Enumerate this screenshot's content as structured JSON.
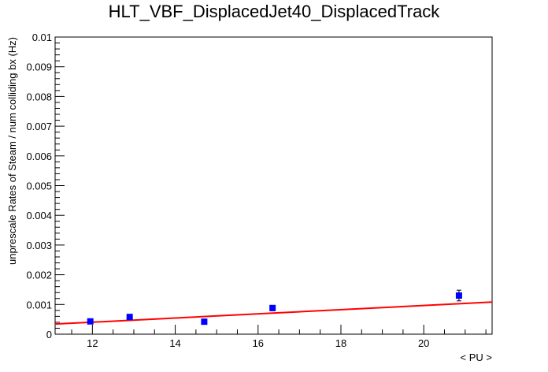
{
  "chart_data": {
    "type": "scatter",
    "title": "HLT_VBF_DisplacedJet40_DisplacedTrack",
    "xlabel": "< PU >",
    "ylabel": "unprescale Rates of Steam / num colliding bx (Hz)",
    "xlim": [
      11.1,
      21.65
    ],
    "ylim": [
      0,
      0.01
    ],
    "x_ticks": [
      12,
      14,
      16,
      18,
      20
    ],
    "y_ticks": [
      0,
      0.001,
      0.002,
      0.003,
      0.004,
      0.005,
      0.006,
      0.007,
      0.008,
      0.009,
      0.01
    ],
    "x_tick_labels": [
      "12",
      "14",
      "16",
      "18",
      "20"
    ],
    "y_tick_labels": [
      "0",
      "0.001",
      "0.002",
      "0.003",
      "0.004",
      "0.005",
      "0.006",
      "0.007",
      "0.008",
      "0.009",
      "0.01"
    ],
    "grid": false,
    "legend": "none",
    "series": [
      {
        "kind": "points",
        "color": "#0000ff",
        "marker": "square",
        "x": [
          11.95,
          12.9,
          14.7,
          16.35,
          20.85
        ],
        "y": [
          0.00043,
          0.00058,
          0.00042,
          0.00088,
          0.0013
        ],
        "y_err": [
          6e-05,
          7e-05,
          6e-05,
          9e-05,
          0.00018
        ]
      },
      {
        "kind": "fit-line",
        "color": "#ff0000",
        "x": [
          11.1,
          21.65
        ],
        "y": [
          0.00034,
          0.00108
        ]
      }
    ]
  }
}
